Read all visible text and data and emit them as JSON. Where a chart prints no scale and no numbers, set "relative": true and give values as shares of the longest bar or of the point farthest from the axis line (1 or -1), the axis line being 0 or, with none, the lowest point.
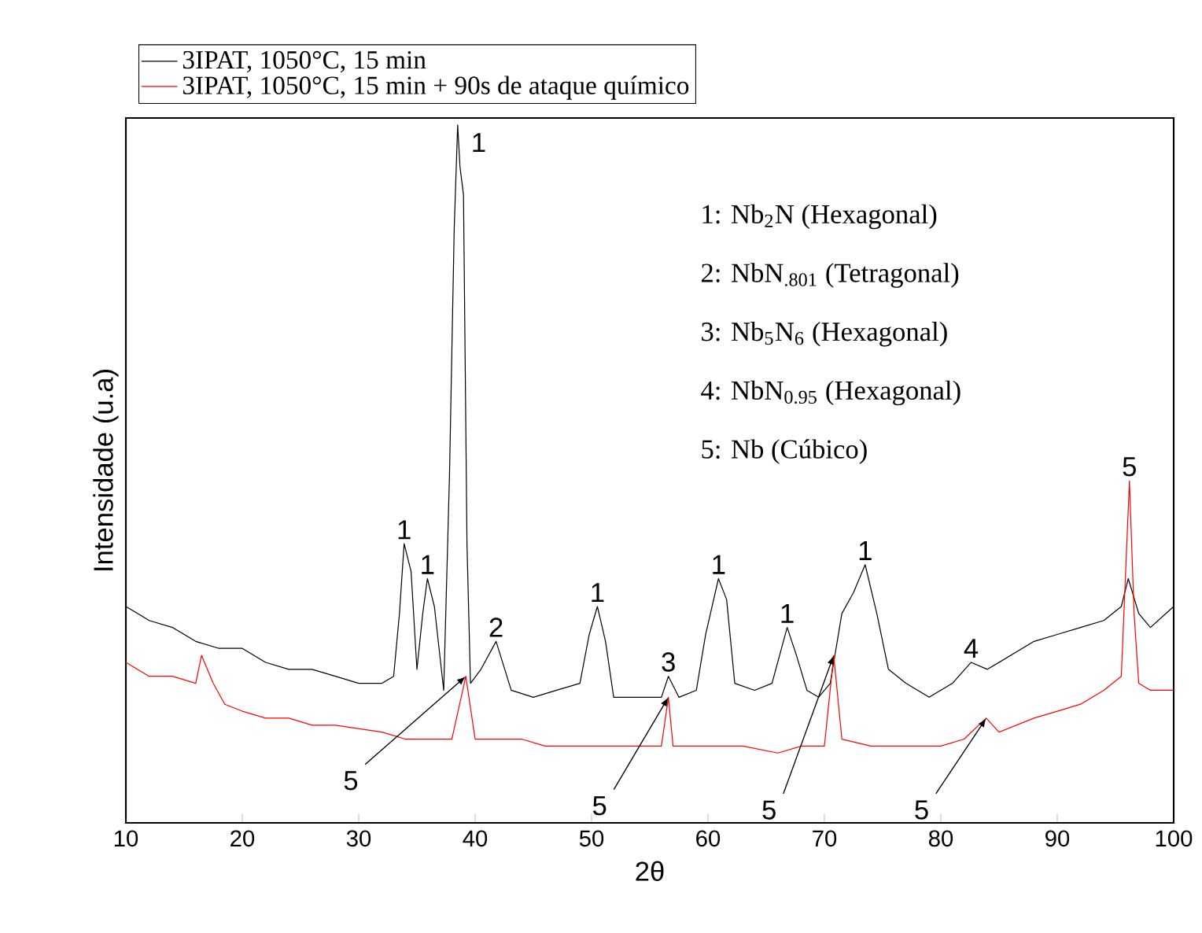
{
  "chart_data": {
    "type": "line",
    "relative": true,
    "xlabel": "2θ",
    "ylabel": "Intensidade (u.a)",
    "xlim": [
      10,
      100
    ],
    "xticks": [
      10,
      20,
      30,
      40,
      50,
      60,
      70,
      80,
      90,
      100
    ],
    "legend": "top left",
    "series": [
      {
        "name": "3IPAT, 1050°C, 15 min",
        "color": "#000000",
        "x": [
          10,
          11,
          12,
          14,
          16,
          18,
          20,
          22,
          24,
          26,
          28,
          30,
          32,
          33,
          33.5,
          33.9,
          34.5,
          35,
          35.5,
          35.9,
          36.5,
          37.3,
          37.8,
          38.2,
          38.5,
          38.7,
          39.0,
          39.3,
          39.6,
          40.5,
          41.8,
          43.1,
          45,
          47,
          49,
          49.8,
          50.5,
          51.2,
          51.9,
          54,
          56,
          56.6,
          57.5,
          59,
          59.8,
          60.9,
          61.6,
          62.3,
          64,
          65.5,
          66.8,
          67.6,
          68.5,
          69.5,
          70.5,
          71.5,
          72.5,
          73.5,
          74.5,
          75.5,
          77,
          79,
          81,
          82.6,
          84,
          86,
          88,
          90,
          92,
          94,
          95.5,
          96.1,
          97,
          98,
          100
        ],
        "values": [
          0.31,
          0.3,
          0.29,
          0.28,
          0.26,
          0.25,
          0.25,
          0.23,
          0.22,
          0.22,
          0.21,
          0.2,
          0.2,
          0.21,
          0.3,
          0.4,
          0.36,
          0.22,
          0.3,
          0.35,
          0.31,
          0.19,
          0.5,
          0.85,
          1.0,
          0.94,
          0.9,
          0.4,
          0.2,
          0.22,
          0.26,
          0.19,
          0.18,
          0.19,
          0.2,
          0.27,
          0.31,
          0.26,
          0.18,
          0.18,
          0.18,
          0.21,
          0.18,
          0.19,
          0.27,
          0.35,
          0.32,
          0.2,
          0.19,
          0.2,
          0.28,
          0.24,
          0.19,
          0.18,
          0.2,
          0.3,
          0.33,
          0.37,
          0.3,
          0.22,
          0.2,
          0.18,
          0.2,
          0.23,
          0.22,
          0.24,
          0.26,
          0.27,
          0.28,
          0.29,
          0.31,
          0.35,
          0.3,
          0.28,
          0.31
        ]
      },
      {
        "name": "3IPAT, 1050°C, 15 min + 90s de ataque químico",
        "color": "#ff0000",
        "x": [
          10,
          12,
          14,
          16,
          16.5,
          17.5,
          18.5,
          20,
          22,
          24,
          26,
          28,
          30,
          32,
          34,
          36,
          38,
          39.2,
          40,
          42,
          44,
          46,
          48,
          50,
          52,
          54,
          56,
          56.6,
          57,
          60,
          63,
          66,
          68,
          70,
          70.8,
          71.5,
          74,
          77,
          80,
          82,
          83.9,
          85,
          88,
          90,
          92,
          94,
          95.5,
          96.2,
          96.6,
          97,
          98,
          100
        ],
        "values": [
          0.23,
          0.21,
          0.21,
          0.2,
          0.24,
          0.2,
          0.17,
          0.16,
          0.15,
          0.15,
          0.14,
          0.14,
          0.135,
          0.13,
          0.12,
          0.12,
          0.12,
          0.21,
          0.12,
          0.12,
          0.12,
          0.11,
          0.11,
          0.11,
          0.11,
          0.11,
          0.11,
          0.18,
          0.11,
          0.11,
          0.11,
          0.1,
          0.11,
          0.11,
          0.24,
          0.12,
          0.11,
          0.11,
          0.11,
          0.12,
          0.15,
          0.13,
          0.15,
          0.16,
          0.17,
          0.19,
          0.21,
          0.49,
          0.3,
          0.2,
          0.19,
          0.19
        ]
      }
    ],
    "annotations": [
      {
        "text": "1",
        "x": 38.5,
        "y": 1.0
      },
      {
        "text": "1",
        "x": 33.9,
        "y": 0.4
      },
      {
        "text": "1",
        "x": 35.9,
        "y": 0.35
      },
      {
        "text": "2",
        "x": 41.8,
        "y": 0.26
      },
      {
        "text": "1",
        "x": 50.5,
        "y": 0.31
      },
      {
        "text": "3",
        "x": 56.6,
        "y": 0.21
      },
      {
        "text": "1",
        "x": 60.9,
        "y": 0.35
      },
      {
        "text": "1",
        "x": 66.8,
        "y": 0.28
      },
      {
        "text": "1",
        "x": 73.5,
        "y": 0.37
      },
      {
        "text": "4",
        "x": 82.6,
        "y": 0.23
      },
      {
        "text": "5",
        "x": 96.2,
        "y": 0.49
      },
      {
        "text": "5",
        "x": 39.2,
        "y": 0.21
      },
      {
        "text": "5",
        "x": 56.6,
        "y": 0.18
      },
      {
        "text": "5",
        "x": 70.8,
        "y": 0.24
      },
      {
        "text": "5",
        "x": 83.9,
        "y": 0.15
      },
      "1: Nb$_{2}$N (Hexagonal)",
      "2: NbN$_{.801}$ (Tetragonal)",
      "3: Nb$_{5}$N$_{6}$  (Hexagonal)",
      "4: NbN$_{0.95}$ (Hexagonal)",
      "5: Nb (Cúbico)"
    ]
  }
}
